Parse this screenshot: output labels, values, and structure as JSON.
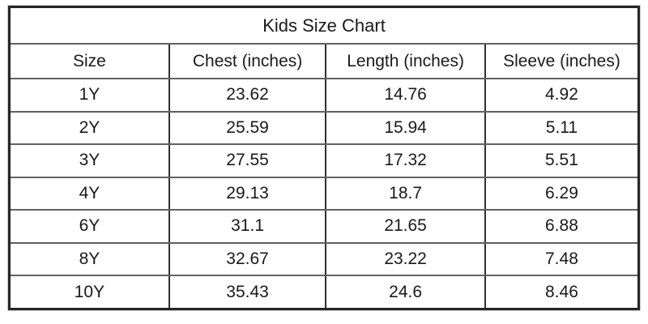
{
  "chart_data": {
    "type": "table",
    "title": "Kids Size Chart",
    "columns": [
      "Size",
      "Chest (inches)",
      "Length (inches)",
      "Sleeve (inches)"
    ],
    "rows": [
      [
        "1Y",
        "23.62",
        "14.76",
        "4.92"
      ],
      [
        "2Y",
        "25.59",
        "15.94",
        "5.11"
      ],
      [
        "3Y",
        "27.55",
        "17.32",
        "5.51"
      ],
      [
        "4Y",
        "29.13",
        "18.7",
        "6.29"
      ],
      [
        "6Y",
        "31.1",
        "21.65",
        "6.88"
      ],
      [
        "8Y",
        "32.67",
        "23.22",
        "7.48"
      ],
      [
        "10Y",
        "35.43",
        "24.6",
        "8.46"
      ]
    ],
    "layout": {
      "legend": "none",
      "grid": "all-cell-borders",
      "title_position": "merged-top-row"
    },
    "colors": {
      "text": "#1a1a1a",
      "outer_border": "#262626",
      "row_divider": "#616161",
      "column_divider": "#303030",
      "background": "#ffffff"
    }
  }
}
